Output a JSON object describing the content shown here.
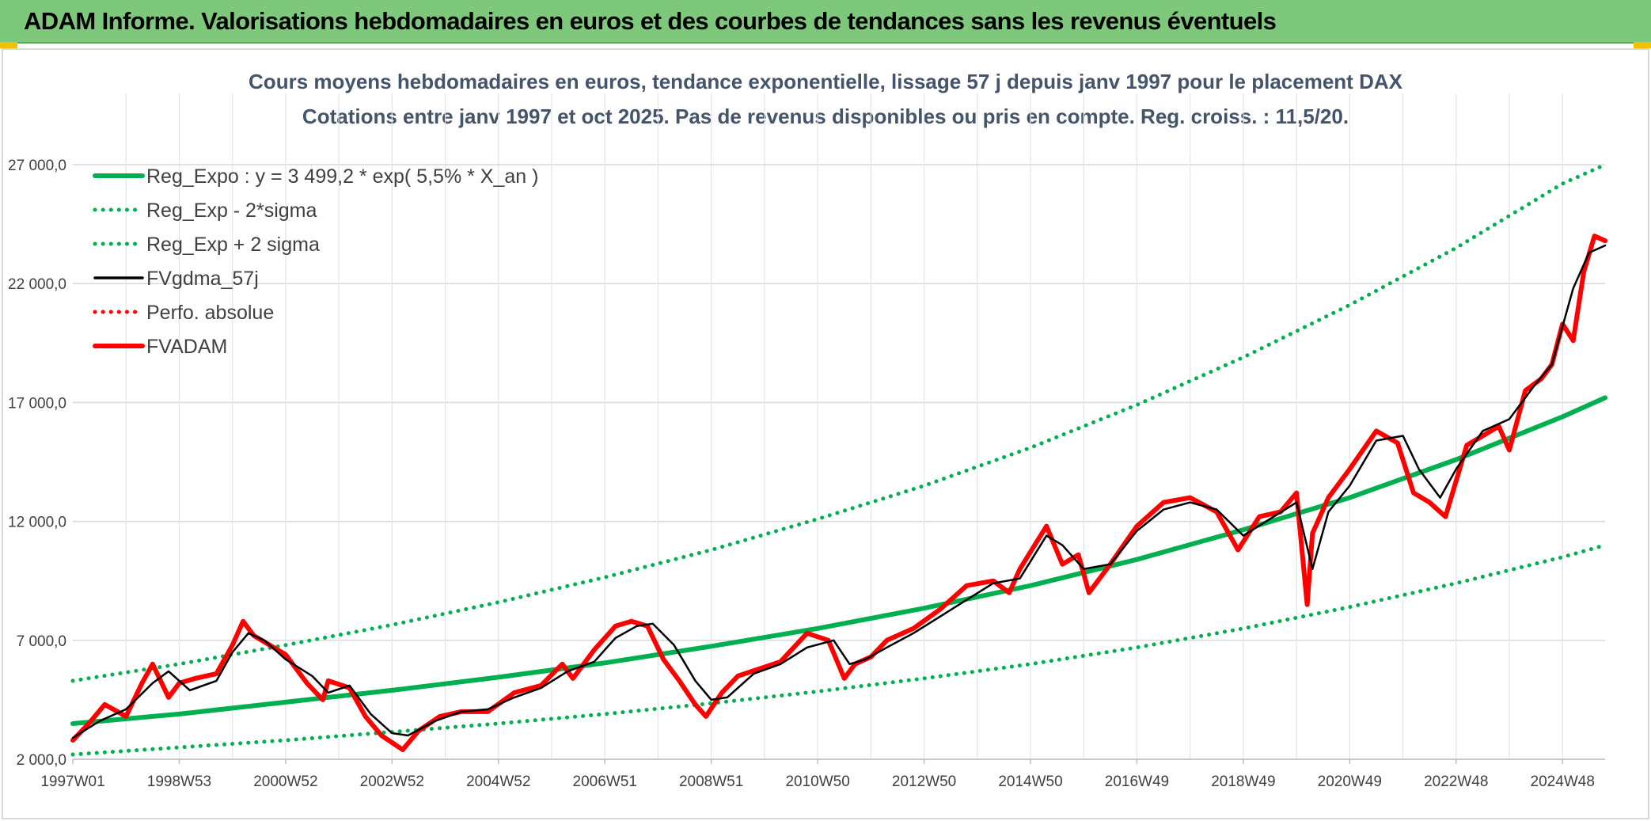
{
  "header": {
    "title": "ADAM Informe. Valorisations hebdomadaires en euros et des courbes de tendances sans les revenus éventuels"
  },
  "colors": {
    "header_bg": "#7ec87c",
    "trend_green": "#00b050",
    "price_red": "#ff0000",
    "smooth_black": "#000000",
    "grid": "#d9d9d9"
  },
  "chart_data": {
    "type": "line",
    "title_line1": "Cours moyens hebdomadaires en euros, tendance exponentielle, lissage 57 j depuis janv 1997 pour le placement DAX",
    "title_line2": "Cotations entre janv 1997 et oct 2025. Pas de revenus disponibles ou pris en compte. Reg. croiss. : 11,5/20.",
    "ylim": [
      2000,
      27000
    ],
    "y_ticks": [
      2000,
      7000,
      12000,
      17000,
      22000,
      27000
    ],
    "y_tick_labels": [
      "2 000,0",
      "7 000,0",
      "12 000,0",
      "17 000,0",
      "22 000,0",
      "27 000,0"
    ],
    "x_range_years": [
      1997.0,
      2025.8
    ],
    "x_tick_labels": [
      "1997W01",
      "1998W53",
      "2000W52",
      "2002W52",
      "2004W52",
      "2006W51",
      "2008W51",
      "2010W50",
      "2012W50",
      "2014W50",
      "2016W49",
      "2018W49",
      "2020W49",
      "2022W48",
      "2024W48"
    ],
    "x_tick_years": [
      1997.0,
      1999.0,
      2001.0,
      2003.0,
      2005.0,
      2007.0,
      2009.0,
      2011.0,
      2013.0,
      2015.0,
      2017.0,
      2019.0,
      2021.0,
      2023.0,
      2025.0
    ],
    "grid": true,
    "legend_position": "top-left",
    "series": [
      {
        "name": "Reg_Expo : y = 3 499,2 * exp( 5,5% *  X_an )",
        "style": "solid-thick",
        "color": "#00b050",
        "x": [
          1997.0,
          1999.0,
          2001.0,
          2003.0,
          2005.0,
          2007.0,
          2009.0,
          2011.0,
          2013.0,
          2015.0,
          2017.0,
          2019.0,
          2021.0,
          2023.0,
          2025.0,
          2025.8
        ],
        "y": [
          3499,
          3900,
          4400,
          4900,
          5450,
          6050,
          6750,
          7500,
          8350,
          9300,
          10400,
          11650,
          13000,
          14600,
          16400,
          17200
        ]
      },
      {
        "name": "Reg_Exp - 2*sigma",
        "style": "dotted",
        "color": "#00b050",
        "x": [
          1997.0,
          1999.0,
          2001.0,
          2003.0,
          2005.0,
          2007.0,
          2009.0,
          2011.0,
          2013.0,
          2015.0,
          2017.0,
          2019.0,
          2021.0,
          2023.0,
          2025.0,
          2025.8
        ],
        "y": [
          2200,
          2500,
          2800,
          3150,
          3500,
          3900,
          4350,
          4850,
          5400,
          6000,
          6700,
          7500,
          8400,
          9400,
          10500,
          11000
        ]
      },
      {
        "name": "Reg_Exp + 2 sigma",
        "style": "dotted",
        "color": "#00b050",
        "x": [
          1997.0,
          1999.0,
          2001.0,
          2003.0,
          2005.0,
          2007.0,
          2009.0,
          2011.0,
          2013.0,
          2015.0,
          2017.0,
          2019.0,
          2021.0,
          2023.0,
          2025.0,
          2025.8
        ],
        "y": [
          5300,
          6000,
          6800,
          7650,
          8600,
          9650,
          10800,
          12100,
          13500,
          15100,
          16900,
          18900,
          21100,
          23500,
          26200,
          27000
        ]
      },
      {
        "name": "FVgdma_57j",
        "style": "solid",
        "color": "#000000",
        "x": [
          1997.0,
          1997.5,
          1998.0,
          1998.5,
          1998.8,
          1999.2,
          1999.7,
          2000.0,
          2000.3,
          2000.6,
          2001.0,
          2001.5,
          2001.8,
          2002.2,
          2002.6,
          2003.0,
          2003.3,
          2003.8,
          2004.3,
          2004.8,
          2005.3,
          2005.8,
          2006.3,
          2006.8,
          2007.2,
          2007.6,
          2007.9,
          2008.3,
          2008.7,
          2009.0,
          2009.3,
          2009.8,
          2010.3,
          2010.8,
          2011.3,
          2011.6,
          2011.9,
          2012.3,
          2012.8,
          2013.3,
          2013.8,
          2014.3,
          2014.8,
          2015.3,
          2015.6,
          2016.0,
          2016.5,
          2017.0,
          2017.5,
          2018.0,
          2018.5,
          2019.0,
          2019.5,
          2020.0,
          2020.3,
          2020.6,
          2021.0,
          2021.5,
          2022.0,
          2022.3,
          2022.7,
          2023.0,
          2023.5,
          2024.0,
          2024.5,
          2024.8,
          2025.2,
          2025.5,
          2025.8
        ],
        "y": [
          2900,
          3600,
          4100,
          5200,
          5700,
          4900,
          5300,
          6500,
          7300,
          7000,
          6200,
          5500,
          4800,
          5100,
          3900,
          3100,
          3000,
          3600,
          4000,
          4100,
          4600,
          5000,
          5700,
          6100,
          7100,
          7600,
          7700,
          6800,
          5300,
          4500,
          4600,
          5600,
          6000,
          6700,
          7000,
          6000,
          6200,
          6700,
          7300,
          8000,
          8700,
          9400,
          9600,
          11400,
          11000,
          10000,
          10200,
          11600,
          12500,
          12800,
          12500,
          11400,
          12100,
          12800,
          10000,
          12400,
          13500,
          15400,
          15600,
          14200,
          13000,
          14200,
          15800,
          16300,
          17800,
          18600,
          21800,
          23300,
          23600
        ]
      },
      {
        "name": "Perfo. absolue",
        "style": "dotted",
        "color": "#ff0000",
        "x": [],
        "y": []
      },
      {
        "name": "FVADAM",
        "style": "solid-thick",
        "color": "#ff0000",
        "x": [
          1997.0,
          1997.3,
          1997.6,
          1998.0,
          1998.3,
          1998.5,
          1998.8,
          1999.0,
          1999.3,
          1999.7,
          2000.0,
          2000.2,
          2000.4,
          2000.7,
          2001.0,
          2001.4,
          2001.7,
          2001.8,
          2002.2,
          2002.5,
          2002.8,
          2003.2,
          2003.5,
          2003.9,
          2004.3,
          2004.8,
          2005.3,
          2005.8,
          2006.2,
          2006.4,
          2006.8,
          2007.2,
          2007.5,
          2007.8,
          2008.1,
          2008.4,
          2008.7,
          2008.9,
          2009.2,
          2009.5,
          2009.9,
          2010.3,
          2010.8,
          2011.2,
          2011.5,
          2011.7,
          2012.0,
          2012.3,
          2012.8,
          2013.3,
          2013.8,
          2014.3,
          2014.6,
          2014.8,
          2015.3,
          2015.6,
          2015.9,
          2016.1,
          2016.5,
          2017.0,
          2017.5,
          2018.0,
          2018.5,
          2018.9,
          2019.3,
          2019.7,
          2020.0,
          2020.2,
          2020.3,
          2020.6,
          2021.0,
          2021.5,
          2021.9,
          2022.2,
          2022.5,
          2022.8,
          2023.2,
          2023.5,
          2023.8,
          2024.0,
          2024.3,
          2024.6,
          2024.8,
          2025.0,
          2025.2,
          2025.4,
          2025.6,
          2025.8
        ],
        "y": [
          2800,
          3500,
          4300,
          3800,
          5200,
          6000,
          4600,
          5200,
          5400,
          5600,
          6800,
          7800,
          7200,
          6800,
          6400,
          5200,
          4500,
          5300,
          5000,
          3800,
          3000,
          2400,
          3200,
          3800,
          4000,
          4000,
          4800,
          5100,
          6000,
          5400,
          6600,
          7600,
          7800,
          7600,
          6200,
          5300,
          4300,
          3800,
          4800,
          5500,
          5800,
          6100,
          7300,
          7000,
          5400,
          6000,
          6300,
          7000,
          7500,
          8300,
          9300,
          9500,
          9000,
          10000,
          11800,
          10200,
          10600,
          9000,
          10200,
          11800,
          12800,
          13000,
          12400,
          10800,
          12200,
          12400,
          13200,
          8500,
          11500,
          13000,
          14200,
          15800,
          15300,
          13200,
          12800,
          12200,
          15200,
          15600,
          16000,
          15000,
          17500,
          18000,
          18600,
          20300,
          19600,
          22500,
          24000,
          23800
        ]
      }
    ]
  }
}
